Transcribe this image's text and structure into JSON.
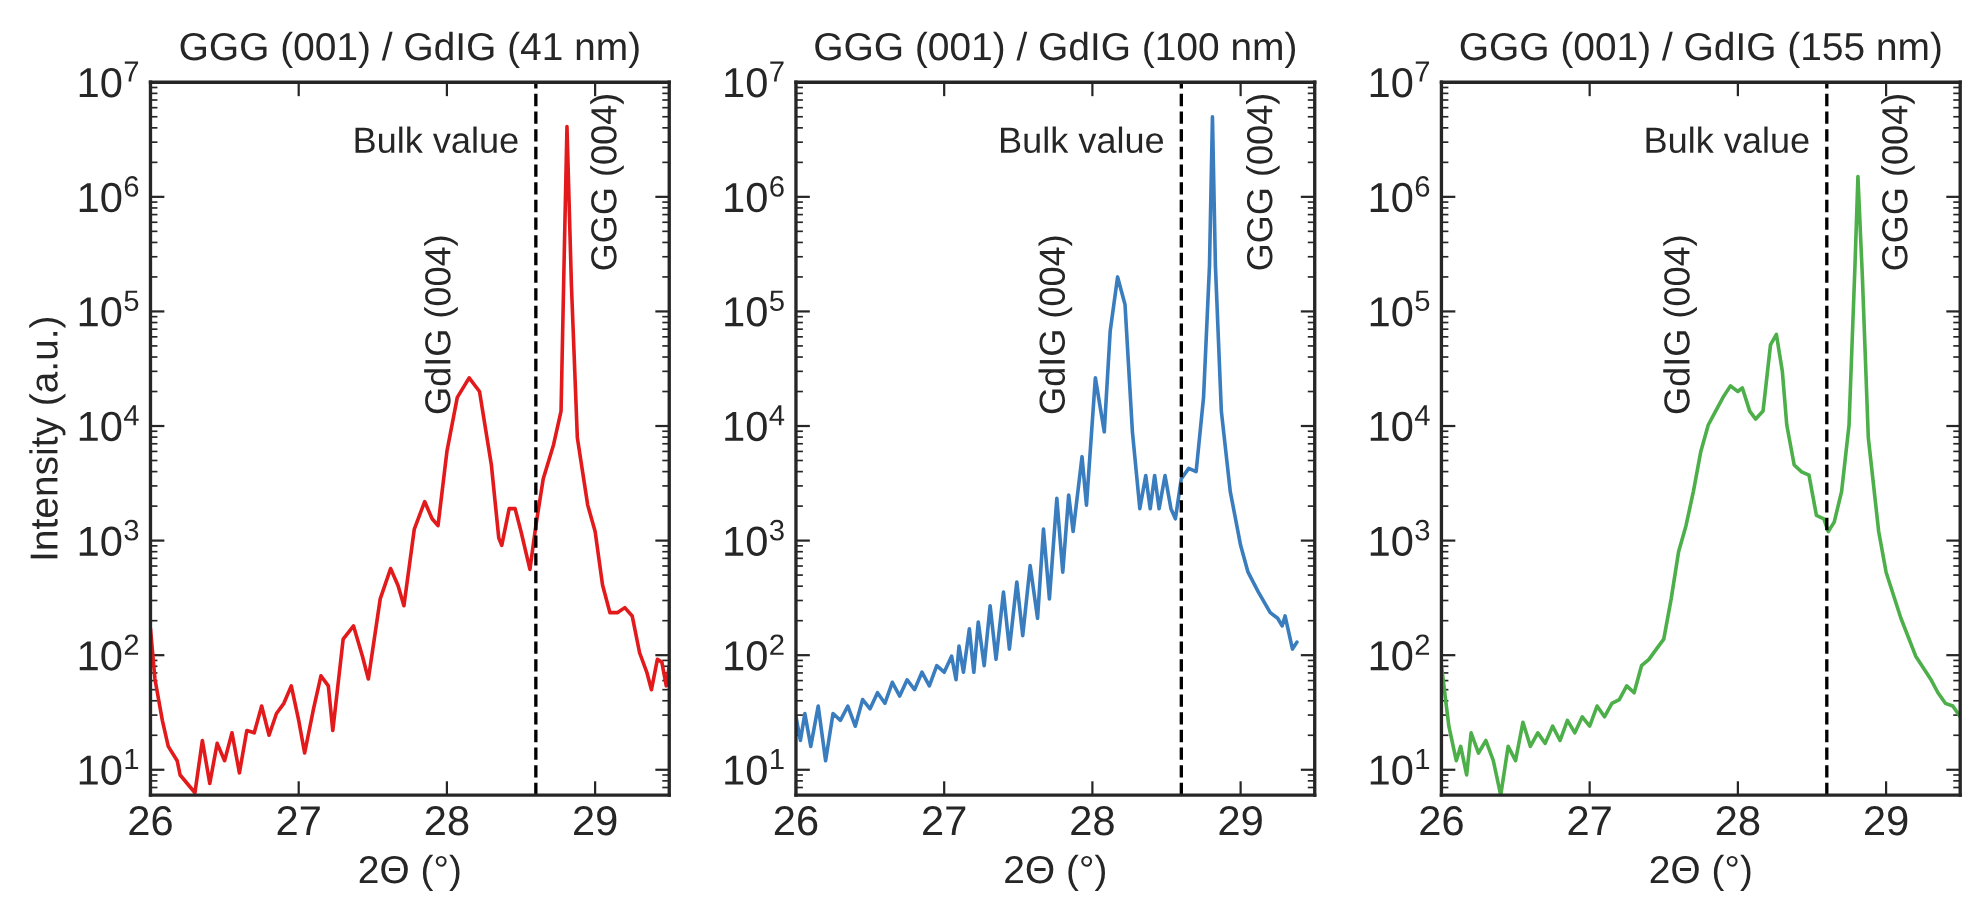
{
  "chart_data": [
    {
      "type": "line",
      "title": "GGG (001) / GdIG (41 nm)",
      "xlabel": "2Θ (°)",
      "ylabel": "Intensity (a.u.)",
      "log": "y",
      "grid": false,
      "line_style": "solid",
      "marker": "none",
      "xlim": [
        26,
        29.5
      ],
      "ylim": [
        6,
        10000000
      ],
      "xticks": [
        26,
        27,
        28,
        29
      ],
      "yticks": [
        {
          "value": 10,
          "label": "10$^{1}$"
        },
        {
          "value": 100,
          "label": "10$^{2}$"
        },
        {
          "value": 1000,
          "label": "10$^{3}$"
        },
        {
          "value": 10000,
          "label": "10$^{4}$"
        },
        {
          "value": 100000,
          "label": "10$^{5}$"
        },
        {
          "value": 1000000,
          "label": "10$^{6}$"
        },
        {
          "value": 10000000,
          "label": "10$^{7}$"
        }
      ],
      "x": [
        26.0,
        26.03,
        26.08,
        26.12,
        26.18,
        26.2,
        26.3,
        26.35,
        26.4,
        26.45,
        26.5,
        26.55,
        26.6,
        26.65,
        26.7,
        26.75,
        26.8,
        26.85,
        26.9,
        26.95,
        27.0,
        27.04,
        27.1,
        27.15,
        27.2,
        27.23,
        27.3,
        27.37,
        27.43,
        27.47,
        27.55,
        27.62,
        27.67,
        27.71,
        27.78,
        27.85,
        27.9,
        27.94,
        28.0,
        28.07,
        28.15,
        28.22,
        28.3,
        28.35,
        28.37,
        28.42,
        28.46,
        28.5,
        28.56,
        28.6,
        28.65,
        28.72,
        28.77,
        28.79,
        28.81,
        28.84,
        28.88,
        28.95,
        29.0,
        29.05,
        29.1,
        29.15,
        29.2,
        29.25,
        29.3,
        29.35,
        29.38,
        29.42,
        29.45,
        29.48,
        29.5
      ],
      "series": [
        {
          "color": "#e31a1c",
          "values": [
            170,
            62,
            27,
            16,
            12,
            9,
            6.3,
            18,
            7.6,
            17,
            12,
            21,
            9.4,
            22,
            21,
            36,
            20,
            31,
            38,
            54,
            27,
            14,
            34,
            66,
            54,
            22,
            138,
            180,
            98,
            62,
            310,
            570,
            405,
            270,
            1260,
            2190,
            1550,
            1350,
            6000,
            17800,
            26300,
            20000,
            4570,
            1050,
            910,
            1900,
            1900,
            1200,
            560,
            1350,
            3470,
            6900,
            13500,
            250000,
            4100000,
            170000,
            7900,
            2040,
            1200,
            410,
            235,
            235,
            260,
            220,
            105,
            70,
            50,
            92,
            87,
            54,
            81
          ]
        }
      ],
      "ref_lines": [
        {
          "axis": "x",
          "value": 28.6,
          "label": "Bulk value",
          "color": "#000000",
          "line_style": "dashed"
        }
      ],
      "annotations": [
        "GdIG (004)",
        "GGG (004)"
      ]
    },
    {
      "type": "line",
      "title": "GGG (001) / GdIG (100 nm)",
      "xlabel": "2Θ (°)",
      "log": "y",
      "grid": false,
      "line_style": "solid",
      "marker": "none",
      "xlim": [
        26,
        29.5
      ],
      "ylim": [
        6,
        10000000
      ],
      "xticks": [
        26,
        27,
        28,
        29
      ],
      "yticks": [
        {
          "value": 10,
          "label": "10$^{1}$"
        },
        {
          "value": 100,
          "label": "10$^{2}$"
        },
        {
          "value": 1000,
          "label": "10$^{3}$"
        },
        {
          "value": 10000,
          "label": "10$^{4}$"
        },
        {
          "value": 100000,
          "label": "10$^{5}$"
        },
        {
          "value": 1000000,
          "label": "10$^{6}$"
        },
        {
          "value": 10000000,
          "label": "10$^{7}$"
        }
      ],
      "x": [
        26.0,
        26.03,
        26.06,
        26.1,
        26.15,
        26.2,
        26.25,
        26.3,
        26.35,
        26.4,
        26.45,
        26.5,
        26.55,
        26.6,
        26.65,
        26.7,
        26.75,
        26.8,
        26.85,
        26.9,
        26.95,
        27.0,
        27.05,
        27.08,
        27.1,
        27.13,
        27.17,
        27.2,
        27.23,
        27.27,
        27.31,
        27.35,
        27.4,
        27.44,
        27.49,
        27.53,
        27.58,
        27.63,
        27.67,
        27.71,
        27.76,
        27.8,
        27.84,
        27.87,
        27.93,
        27.96,
        28.02,
        28.08,
        28.12,
        28.17,
        28.22,
        28.27,
        28.32,
        28.36,
        28.39,
        28.42,
        28.45,
        28.49,
        28.53,
        28.56,
        28.6,
        28.65,
        28.7,
        28.75,
        28.79,
        28.81,
        28.83,
        28.87,
        28.93,
        29.0,
        29.05,
        29.12,
        29.2,
        29.25,
        29.28,
        29.3,
        29.35,
        29.38
      ],
      "series": [
        {
          "color": "#3a7dbf",
          "values": [
            29,
            18,
            31,
            16,
            36,
            12,
            31,
            27,
            36,
            24,
            41,
            34,
            47,
            38,
            58,
            44,
            61,
            50,
            71,
            54,
            81,
            71,
            98,
            61,
            120,
            71,
            170,
            71,
            195,
            81,
            270,
            92,
            355,
            113,
            435,
            148,
            605,
            210,
            1260,
            310,
            2340,
            530,
            2500,
            1200,
            5400,
            2040,
            26300,
            8900,
            67000,
            200000,
            115000,
            8900,
            1900,
            3700,
            1900,
            3700,
            1900,
            3700,
            1900,
            1550,
            3470,
            4270,
            4000,
            17800,
            250000,
            5000000,
            250000,
            13500,
            2690,
            910,
            530,
            355,
            235,
            210,
            180,
            220,
            113,
            130
          ]
        }
      ],
      "ref_lines": [
        {
          "axis": "x",
          "value": 28.6,
          "label": "Bulk value",
          "color": "#000000",
          "line_style": "dashed"
        }
      ],
      "annotations": [
        "GdIG (004)",
        "GGG (004)"
      ]
    },
    {
      "type": "line",
      "title": "GGG (001) / GdIG (155 nm)",
      "xlabel": "2Θ (°)",
      "log": "y",
      "grid": false,
      "line_style": "solid",
      "marker": "none",
      "xlim": [
        26,
        29.5
      ],
      "ylim": [
        6,
        10000000
      ],
      "xticks": [
        26,
        27,
        28,
        29
      ],
      "yticks": [
        {
          "value": 10,
          "label": "10$^{1}$"
        },
        {
          "value": 100,
          "label": "10$^{2}$"
        },
        {
          "value": 1000,
          "label": "10$^{3}$"
        },
        {
          "value": 10000,
          "label": "10$^{4}$"
        },
        {
          "value": 100000,
          "label": "10$^{5}$"
        },
        {
          "value": 1000000,
          "label": "10$^{6}$"
        },
        {
          "value": 10000000,
          "label": "10$^{7}$"
        }
      ],
      "x": [
        26.0,
        26.05,
        26.1,
        26.13,
        26.17,
        26.2,
        26.25,
        26.3,
        26.35,
        26.4,
        26.45,
        26.5,
        26.55,
        26.6,
        26.65,
        26.7,
        26.75,
        26.8,
        26.85,
        26.9,
        26.95,
        27.0,
        27.05,
        27.1,
        27.15,
        27.2,
        27.25,
        27.3,
        27.35,
        27.4,
        27.45,
        27.5,
        27.55,
        27.6,
        27.65,
        27.7,
        27.75,
        27.8,
        27.85,
        27.9,
        27.95,
        28.0,
        28.03,
        28.08,
        28.12,
        28.17,
        28.22,
        28.26,
        28.3,
        28.33,
        28.38,
        28.43,
        28.48,
        28.5,
        28.53,
        28.58,
        28.61,
        28.65,
        28.7,
        28.75,
        28.79,
        28.81,
        28.84,
        28.88,
        28.95,
        29.0,
        29.1,
        29.2,
        29.3,
        29.35,
        29.4,
        29.45,
        29.5
      ],
      "series": [
        {
          "color": "#4daf4a",
          "values": [
            81,
            24,
            12,
            16,
            9,
            21,
            14,
            18,
            12,
            6,
            16,
            12,
            26,
            16,
            21,
            17,
            24,
            18,
            27,
            21,
            29,
            24,
            36,
            29,
            38,
            41,
            54,
            47,
            81,
            92,
            113,
            138,
            310,
            800,
            1350,
            2690,
            6000,
            10200,
            13500,
            17800,
            22400,
            20000,
            21500,
            13500,
            11500,
            13500,
            51000,
            63000,
            30000,
            10200,
            4570,
            3980,
            3720,
            2690,
            1660,
            1550,
            1200,
            1450,
            2690,
            10200,
            250000,
            1500000,
            200000,
            7900,
            1200,
            530,
            210,
            98,
            62,
            47,
            38,
            36,
            29
          ]
        }
      ],
      "ref_lines": [
        {
          "axis": "x",
          "value": 28.6,
          "label": "Bulk value",
          "color": "#000000",
          "line_style": "dashed"
        }
      ],
      "annotations": [
        "GdIG (004)",
        "GGG (004)"
      ]
    }
  ]
}
